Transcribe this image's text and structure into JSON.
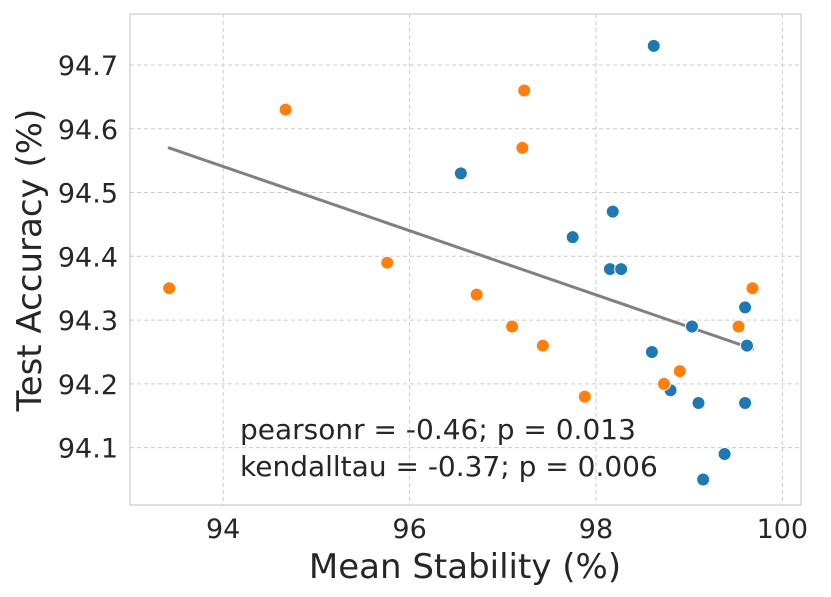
{
  "chart_data": {
    "type": "scatter",
    "title": "",
    "xlabel": "Mean Stability (%)",
    "ylabel": "Test Accuracy (%)",
    "xlim": [
      93.0,
      100.2
    ],
    "ylim": [
      94.01,
      94.78
    ],
    "xticks": [
      94,
      96,
      98,
      100
    ],
    "yticks": [
      94.1,
      94.2,
      94.3,
      94.4,
      94.5,
      94.6,
      94.7
    ],
    "xtick_labels": [
      "94",
      "96",
      "98",
      "100"
    ],
    "ytick_labels": [
      "94.1",
      "94.2",
      "94.3",
      "94.4",
      "94.5",
      "94.6",
      "94.7"
    ],
    "grid": true,
    "series": [
      {
        "name": "blue",
        "color": "#1f77b4",
        "x": [
          98.62,
          96.55,
          98.18,
          97.75,
          98.15,
          98.27,
          99.6,
          99.03,
          99.62,
          98.6,
          98.8,
          99.1,
          99.6,
          99.38,
          99.15
        ],
        "y": [
          94.73,
          94.53,
          94.47,
          94.43,
          94.38,
          94.38,
          94.32,
          94.29,
          94.26,
          94.25,
          94.19,
          94.17,
          94.17,
          94.09,
          94.05
        ]
      },
      {
        "name": "orange",
        "color": "#ff7f0e",
        "x": [
          94.67,
          97.23,
          97.21,
          95.76,
          93.42,
          96.72,
          97.1,
          97.43,
          99.68,
          99.53,
          98.9,
          98.73,
          97.88
        ],
        "y": [
          94.63,
          94.66,
          94.57,
          94.39,
          94.35,
          94.34,
          94.29,
          94.26,
          94.35,
          94.29,
          94.22,
          94.2,
          94.18
        ]
      }
    ],
    "fit_line": {
      "color": "#808080",
      "x": [
        93.42,
        99.68
      ],
      "y": [
        94.57,
        94.255
      ]
    },
    "annotations": [
      "pearsonr = -0.46; p = 0.013",
      "kendalltau = -0.37; p = 0.006"
    ]
  }
}
